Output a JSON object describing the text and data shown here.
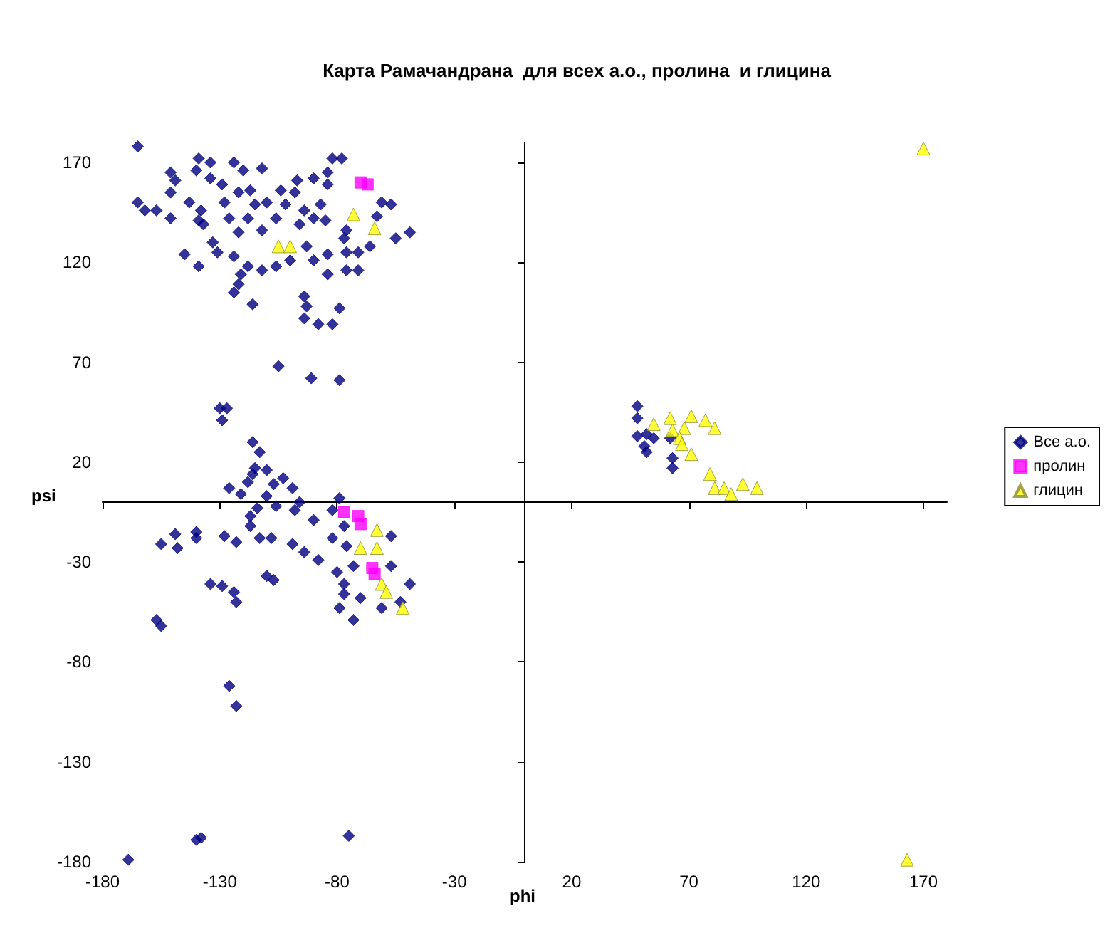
{
  "chart_data": {
    "type": "scatter",
    "title": "Карта Рамачандрана  для всех а.о., пролина  и глицина",
    "xlabel": "phi",
    "ylabel": "psi",
    "xlim": [
      -180,
      180
    ],
    "ylim": [
      -180,
      180
    ],
    "xticks": [
      -180,
      -130,
      -80,
      -30,
      20,
      70,
      120,
      170
    ],
    "yticks": [
      -180,
      -130,
      -80,
      -30,
      20,
      70,
      120,
      170
    ],
    "grid": false,
    "legend": "right",
    "series": [
      {
        "name": "Все а.о.",
        "color": "#000080",
        "marker": "diamond",
        "x": [
          -165,
          -139,
          -134,
          -151,
          -140,
          -124,
          -120,
          -112,
          -82,
          -78,
          -84,
          -90,
          -97,
          -149,
          -134,
          -129,
          -165,
          -162,
          -157,
          -151,
          -143,
          -138,
          -128,
          -122,
          -117,
          -115,
          -110,
          -104,
          -98,
          -102,
          -94,
          -87,
          -84,
          -61,
          -57,
          -49,
          -55,
          -63,
          -76,
          -151,
          -139,
          -137,
          -133,
          -126,
          -122,
          -118,
          -112,
          -106,
          -96,
          -90,
          -85,
          -77,
          -71,
          -66,
          -76,
          -84,
          -90,
          -93,
          -100,
          -106,
          -112,
          -118,
          -121,
          -124,
          -131,
          -139,
          -145,
          -84,
          -76,
          -71,
          -122,
          -124,
          -116,
          -94,
          -93,
          -94,
          -88,
          -82,
          -79,
          -105,
          -91,
          -79,
          -130,
          -127,
          -129,
          -116,
          -113,
          -115,
          -110,
          -116,
          -126,
          -121,
          -118,
          -107,
          -103,
          -99,
          -110,
          -114,
          -117,
          -106,
          -98,
          -96,
          -117,
          -113,
          -108,
          -99,
          -94,
          -88,
          -155,
          -149,
          -148,
          -140,
          -140,
          -128,
          -123,
          -110,
          -107,
          -134,
          -129,
          -124,
          -123,
          -157,
          -155,
          -126,
          -123,
          -90,
          -79,
          -82,
          -77,
          -82,
          -76,
          -80,
          -77,
          -79,
          -73,
          -70,
          -73,
          -57,
          -57,
          -49,
          -53,
          -61,
          -77,
          -140,
          -138,
          -75,
          -169,
          48,
          48,
          48,
          52,
          55,
          51,
          52,
          62,
          63,
          63
        ],
        "values": [
          178,
          172,
          170,
          165,
          166,
          170,
          166,
          167,
          172,
          172,
          165,
          162,
          161,
          161,
          162,
          159,
          150,
          146,
          146,
          155,
          150,
          146,
          150,
          155,
          156,
          149,
          150,
          156,
          155,
          149,
          146,
          149,
          159,
          150,
          149,
          135,
          132,
          143,
          136,
          142,
          141,
          139,
          130,
          142,
          135,
          142,
          136,
          142,
          139,
          142,
          141,
          132,
          125,
          128,
          125,
          124,
          121,
          128,
          121,
          118,
          116,
          118,
          114,
          123,
          125,
          118,
          124,
          114,
          116,
          116,
          109,
          105,
          99,
          103,
          98,
          92,
          89,
          89,
          97,
          68,
          62,
          61,
          47,
          47,
          41,
          30,
          25,
          17,
          16,
          14,
          7,
          4,
          10,
          9,
          12,
          7,
          3,
          -3,
          -7,
          -2,
          -4,
          0,
          -12,
          -18,
          -18,
          -21,
          -25,
          -29,
          -21,
          -16,
          -23,
          -15,
          -18,
          -17,
          -20,
          -37,
          -39,
          -41,
          -42,
          -45,
          -50,
          -59,
          -62,
          -92,
          -102,
          -9,
          2,
          -4,
          -12,
          -18,
          -22,
          -35,
          -41,
          -53,
          -59,
          -48,
          -32,
          -17,
          -32,
          -41,
          -50,
          -53,
          -46,
          -169,
          -168,
          -167,
          -179,
          48,
          42,
          33,
          34,
          32,
          28,
          25,
          32,
          22,
          17
        ]
      },
      {
        "name": "пролин",
        "color": "#ff00ff",
        "marker": "square",
        "x": [
          -70,
          -67,
          -77,
          -71,
          -70,
          -65,
          -64
        ],
        "values": [
          160,
          159,
          -5,
          -7,
          -11,
          -33,
          -36
        ]
      },
      {
        "name": "глицин",
        "color": "#ffff00",
        "marker": "triangle",
        "x": [
          55,
          62,
          63,
          68,
          71,
          77,
          81,
          66,
          67,
          71,
          79,
          81,
          85,
          88,
          93,
          99,
          170,
          163,
          -105,
          -100,
          -73,
          -64,
          -63,
          -70,
          -63,
          -61,
          -59,
          -52
        ],
        "values": [
          39,
          42,
          36,
          37,
          43,
          41,
          37,
          32,
          29,
          24,
          14,
          7,
          7,
          4,
          9,
          7,
          177,
          -179,
          128,
          128,
          144,
          137,
          -14,
          -23,
          -23,
          -41,
          -45,
          -53
        ]
      }
    ]
  }
}
